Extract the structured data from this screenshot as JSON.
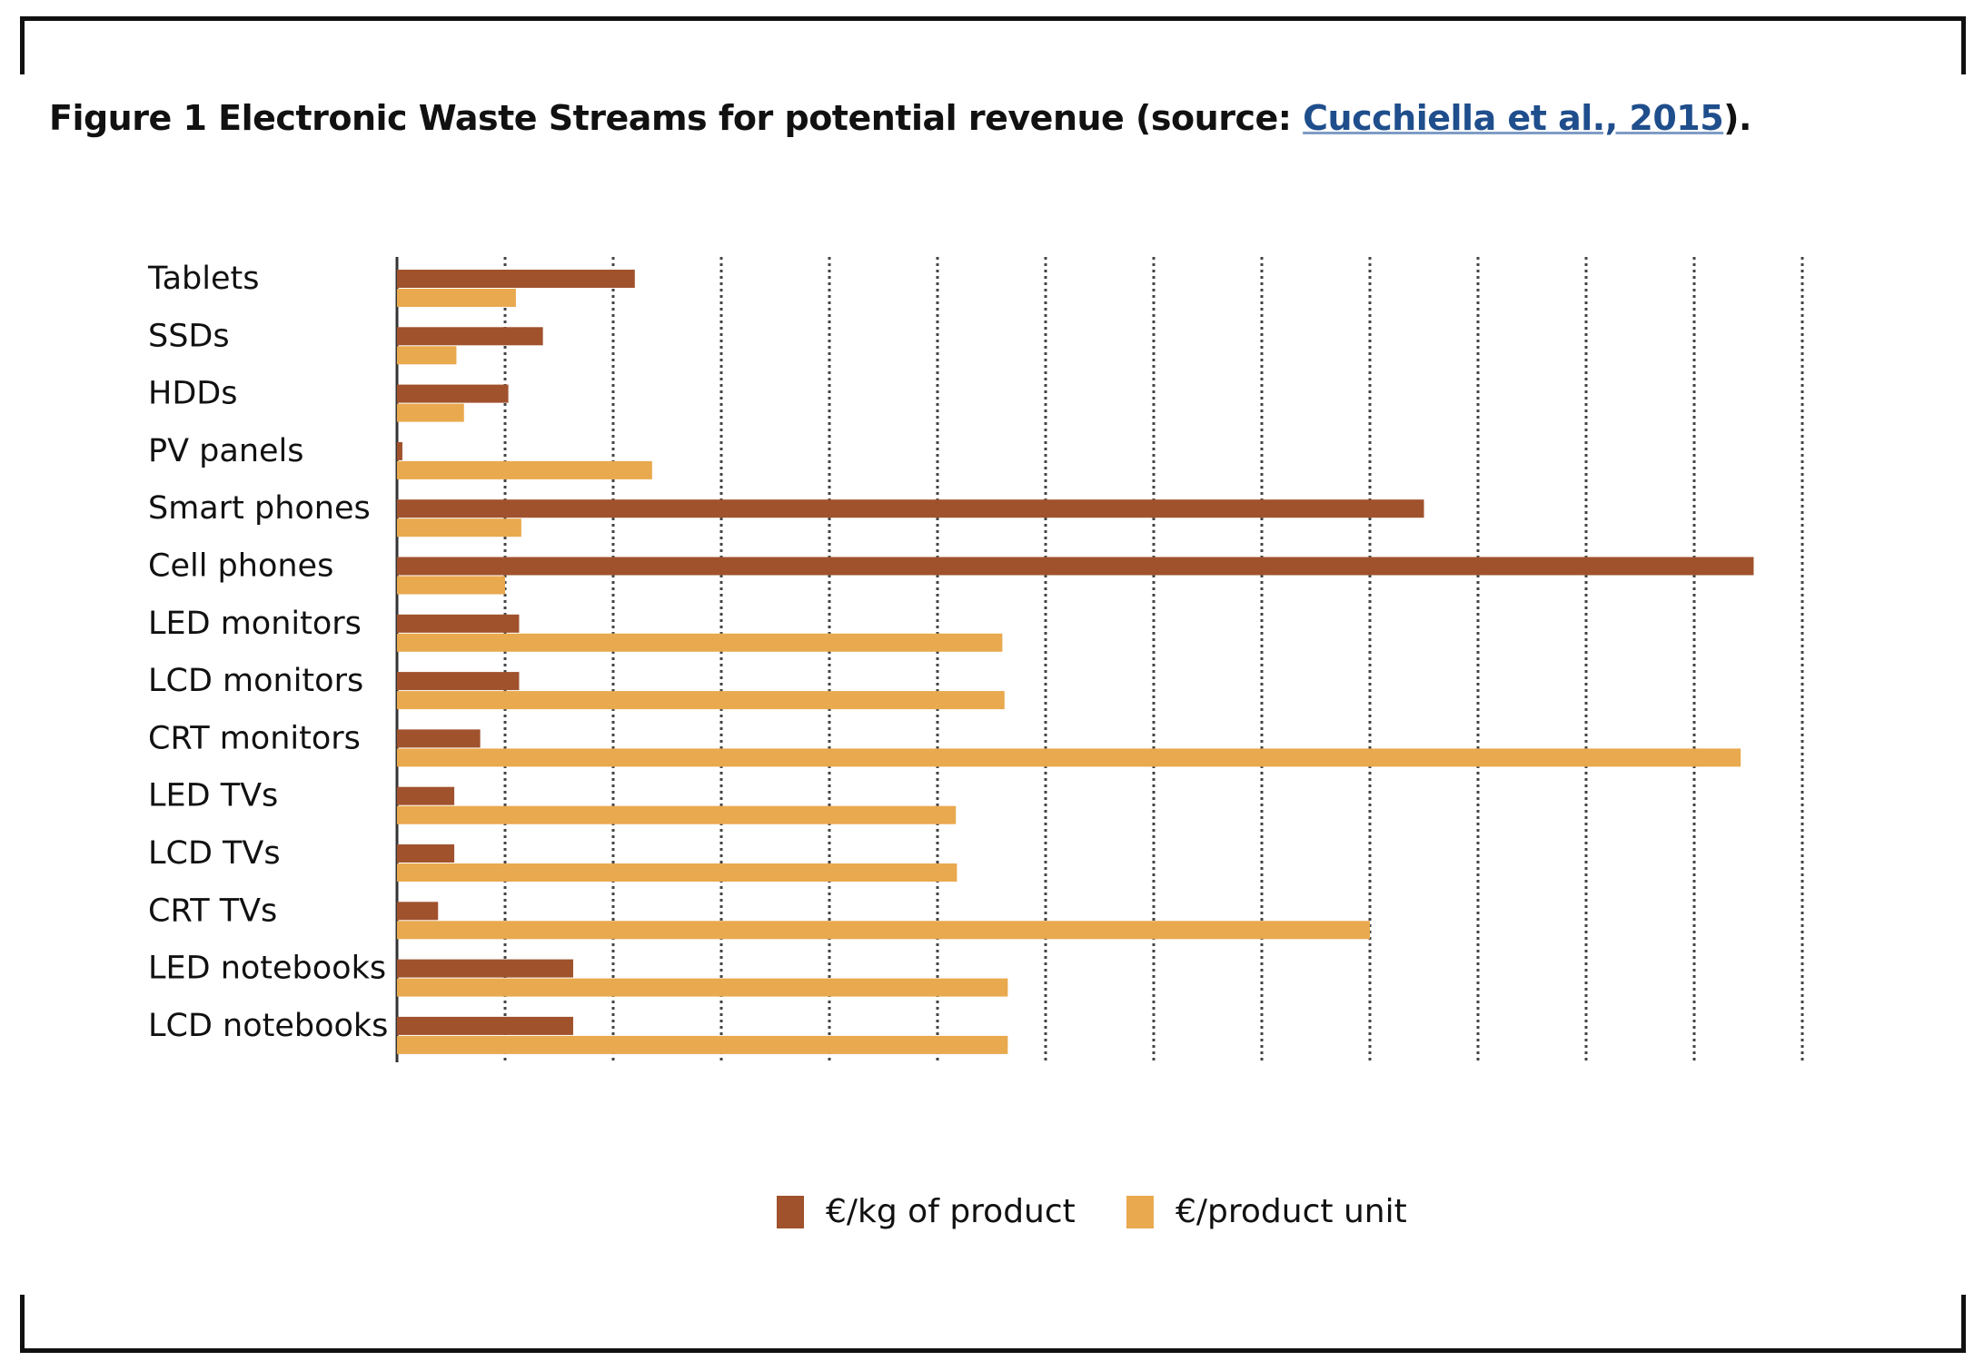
{
  "caption": {
    "prefix": "Figure 1 Electronic Waste Streams for potential revenue (source: ",
    "link_text": "Cucchiella et al., 2015",
    "suffix": ")."
  },
  "colors": {
    "per_kg": "#a0522d",
    "per_unit": "#e9a94e",
    "link": "#1f4e8c"
  },
  "legend": {
    "per_kg_label": "€/kg of product",
    "per_unit_label": "€/product unit"
  },
  "chart_data": {
    "type": "bar",
    "orientation": "horizontal",
    "categories": [
      "Tablets",
      "SSDs",
      "HDDs",
      "PV panels",
      "Smart phones",
      "Cell phones",
      "LED monitors",
      "LCD monitors",
      "CRT monitors",
      "LED TVs",
      "LCD TVs",
      "CRT TVs",
      "LED notebooks",
      "LCD notebooks"
    ],
    "series": [
      {
        "name": "€/kg of product",
        "values": [
          2.2,
          1.35,
          1.03,
          0.05,
          9.5,
          12.55,
          1.13,
          1.13,
          0.77,
          0.53,
          0.53,
          0.38,
          1.63,
          1.63
        ]
      },
      {
        "name": "€/product unit",
        "values": [
          1.1,
          0.55,
          0.62,
          2.36,
          1.15,
          1.0,
          5.6,
          5.62,
          12.43,
          5.17,
          5.18,
          9.0,
          5.65,
          5.65
        ]
      }
    ],
    "xlim": [
      0,
      13
    ],
    "grid": true,
    "legend_position": "bottom"
  }
}
